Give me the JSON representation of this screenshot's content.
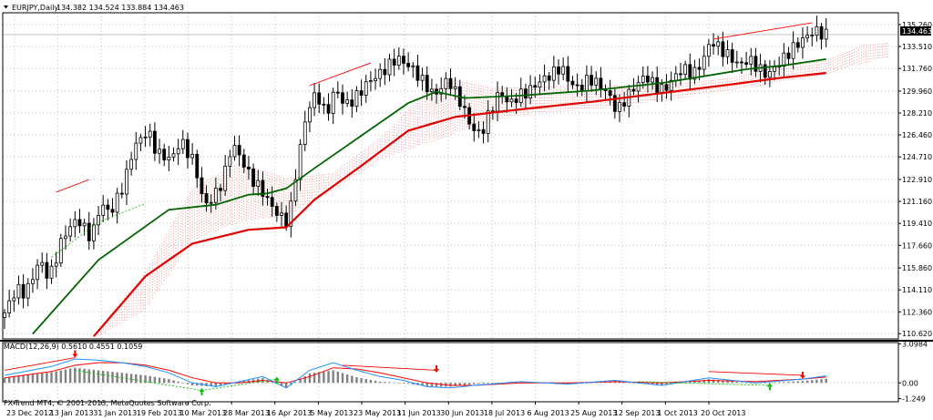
{
  "header": {
    "symbol": "EURJPY,Daily",
    "ohlc": "134.382 134.524 133.884 134.463",
    "menu_icon": "triangle-down-icon"
  },
  "macd_header": {
    "label": "MACD(12,26,9) 0.5610 0.4551 0.1059"
  },
  "copyright": "FX-Trend MT4, © 2001-2013, MetaQuotes Software Corp.",
  "price_axis": {
    "ticks": [
      "135.260",
      "133.510",
      "131.760",
      "129.960",
      "128.210",
      "126.460",
      "124.710",
      "122.910",
      "121.160",
      "119.410",
      "117.660",
      "115.860",
      "114.110",
      "112.360",
      "110.620"
    ],
    "current_price": "134.463"
  },
  "macd_axis": {
    "ticks": [
      "3.0984",
      "0.00",
      "-1.249"
    ]
  },
  "date_axis": {
    "ticks": [
      "23 Dec 2012",
      "13 Jan 2013",
      "31 Jan 2013",
      "19 Feb 2013",
      "10 Mar 2013",
      "28 Mar 2013",
      "16 Apr 2013",
      "5 May 2013",
      "23 May 2013",
      "11 Jun 2013",
      "30 Jun 2013",
      "18 Jul 2013",
      "6 Aug 2013",
      "25 Aug 2013",
      "12 Sep 2013",
      "1 Oct 2013",
      "20 Oct 2013"
    ]
  },
  "colors": {
    "candle": "#000000",
    "ma_fast": "#006400",
    "ma_slow": "#e00000",
    "cloud": "#f08080",
    "cloud_alt": "#c080c0",
    "macd_line": "#1e90ff",
    "signal_line": "#ff0000",
    "histogram": "#808080",
    "divergence_bear": "#ff0000",
    "divergence_bull": "#00c000",
    "grid": "#c0c0c0"
  },
  "chart_data": {
    "type": "candlestick",
    "title": "EURJPY,Daily",
    "ylim": [
      110.2,
      136.2
    ],
    "macd_ylim": [
      -1.5,
      3.2
    ],
    "anchors": [
      [
        0,
        111.9
      ],
      [
        3,
        114.2
      ],
      [
        5,
        113.8
      ],
      [
        8,
        116.5
      ],
      [
        10,
        115.0
      ],
      [
        13,
        118.4
      ],
      [
        16,
        119.8
      ],
      [
        19,
        118.2
      ],
      [
        21,
        121.0
      ],
      [
        23,
        120.2
      ],
      [
        26,
        122.6
      ],
      [
        28,
        125.5
      ],
      [
        31,
        126.8
      ],
      [
        33,
        125.0
      ],
      [
        36,
        124.5
      ],
      [
        38,
        126.0
      ],
      [
        41,
        124.2
      ],
      [
        43,
        120.8
      ],
      [
        45,
        121.5
      ],
      [
        47,
        122.8
      ],
      [
        49,
        125.8
      ],
      [
        51,
        124.5
      ],
      [
        53,
        123.0
      ],
      [
        55,
        122.2
      ],
      [
        57,
        121.0
      ],
      [
        59,
        120.0
      ],
      [
        61,
        119.5
      ],
      [
        63,
        124.5
      ],
      [
        65,
        128.5
      ],
      [
        67,
        129.8
      ],
      [
        69,
        128.0
      ],
      [
        71,
        130.2
      ],
      [
        73,
        128.8
      ],
      [
        75,
        129.3
      ],
      [
        78,
        130.7
      ],
      [
        81,
        131.5
      ],
      [
        84,
        132.6
      ],
      [
        87,
        131.9
      ],
      [
        89,
        131.0
      ],
      [
        92,
        129.6
      ],
      [
        95,
        130.9
      ],
      [
        98,
        128.8
      ],
      [
        100,
        127.0
      ],
      [
        102,
        126.5
      ],
      [
        104,
        128.4
      ],
      [
        106,
        129.9
      ],
      [
        108,
        128.9
      ],
      [
        110,
        129.6
      ],
      [
        112,
        129.9
      ],
      [
        114,
        130.6
      ],
      [
        117,
        131.3
      ],
      [
        119,
        131.9
      ],
      [
        121,
        130.6
      ],
      [
        123,
        130.1
      ],
      [
        125,
        131.0
      ],
      [
        127,
        130.5
      ],
      [
        129,
        129.8
      ],
      [
        131,
        128.3
      ],
      [
        133,
        129.5
      ],
      [
        135,
        130.4
      ],
      [
        137,
        131.2
      ],
      [
        139,
        130.4
      ],
      [
        141,
        130.0
      ],
      [
        143,
        131.0
      ],
      [
        145,
        131.8
      ],
      [
        147,
        131.2
      ],
      [
        149,
        132.2
      ],
      [
        151,
        134.0
      ],
      [
        153,
        133.3
      ],
      [
        155,
        132.7
      ],
      [
        157,
        132.0
      ],
      [
        159,
        132.5
      ],
      [
        161,
        131.8
      ],
      [
        163,
        131.2
      ],
      [
        165,
        132.0
      ],
      [
        167,
        132.8
      ],
      [
        169,
        133.6
      ],
      [
        171,
        134.2
      ],
      [
        173,
        134.8
      ],
      [
        175,
        134.46
      ]
    ],
    "ma_fast": [
      [
        6,
        110.6
      ],
      [
        20,
        116.5
      ],
      [
        35,
        120.5
      ],
      [
        45,
        120.9
      ],
      [
        52,
        121.7
      ],
      [
        56,
        121.8
      ],
      [
        60,
        122.2
      ],
      [
        66,
        123.8
      ],
      [
        76,
        126.4
      ],
      [
        86,
        129.0
      ],
      [
        92,
        129.9
      ],
      [
        98,
        129.4
      ],
      [
        110,
        129.6
      ],
      [
        125,
        130.0
      ],
      [
        140,
        130.6
      ],
      [
        150,
        131.2
      ],
      [
        158,
        131.7
      ],
      [
        166,
        132.0
      ],
      [
        175,
        132.5
      ]
    ],
    "ma_slow": [
      [
        19,
        110.4
      ],
      [
        30,
        115.2
      ],
      [
        40,
        117.8
      ],
      [
        52,
        118.9
      ],
      [
        60,
        119.1
      ],
      [
        66,
        121.3
      ],
      [
        76,
        124.0
      ],
      [
        86,
        126.8
      ],
      [
        96,
        127.9
      ],
      [
        110,
        128.5
      ],
      [
        125,
        129.1
      ],
      [
        140,
        129.8
      ],
      [
        155,
        130.5
      ],
      [
        165,
        131.0
      ],
      [
        175,
        131.4
      ]
    ],
    "cloud_top": [
      [
        20,
        111.0
      ],
      [
        30,
        115.5
      ],
      [
        40,
        122.2
      ],
      [
        50,
        124.2
      ],
      [
        60,
        123.0
      ],
      [
        70,
        123.4
      ],
      [
        80,
        126.2
      ],
      [
        90,
        130.0
      ],
      [
        96,
        130.8
      ],
      [
        104,
        130.2
      ],
      [
        112,
        130.3
      ],
      [
        125,
        130.4
      ],
      [
        140,
        130.4
      ],
      [
        155,
        131.0
      ],
      [
        165,
        131.9
      ],
      [
        175,
        132.4
      ],
      [
        183,
        133.6
      ],
      [
        188,
        133.8
      ]
    ],
    "cloud_bottom": [
      [
        20,
        110.4
      ],
      [
        30,
        112.5
      ],
      [
        40,
        118.0
      ],
      [
        50,
        119.5
      ],
      [
        60,
        120.0
      ],
      [
        70,
        122.0
      ],
      [
        80,
        124.5
      ],
      [
        90,
        125.8
      ],
      [
        96,
        126.6
      ],
      [
        104,
        127.6
      ],
      [
        112,
        128.1
      ],
      [
        125,
        128.5
      ],
      [
        140,
        129.2
      ],
      [
        155,
        130.0
      ],
      [
        165,
        130.6
      ],
      [
        175,
        131.3
      ],
      [
        183,
        132.2
      ],
      [
        188,
        132.6
      ]
    ],
    "ma_fast_dashed_ext": [
      [
        10,
        116.7
      ],
      [
        20,
        119.5
      ],
      [
        30,
        121.0
      ]
    ],
    "divergence_price": [
      [
        [
          11,
          121.9
        ],
        [
          18,
          122.9
        ]
      ],
      [
        [
          65,
          130.4
        ],
        [
          78,
          132.2
        ]
      ],
      [
        [
          151,
          134.1
        ],
        [
          172,
          135.4
        ]
      ]
    ],
    "macd_line": [
      [
        0,
        0.6
      ],
      [
        10,
        1.3
      ],
      [
        15,
        1.9
      ],
      [
        20,
        1.8
      ],
      [
        25,
        1.6
      ],
      [
        30,
        1.3
      ],
      [
        35,
        0.8
      ],
      [
        40,
        0.0
      ],
      [
        45,
        -0.3
      ],
      [
        50,
        0.1
      ],
      [
        55,
        0.5
      ],
      [
        60,
        -0.4
      ],
      [
        65,
        1.0
      ],
      [
        70,
        1.6
      ],
      [
        75,
        1.0
      ],
      [
        80,
        0.5
      ],
      [
        85,
        0.2
      ],
      [
        90,
        -0.3
      ],
      [
        95,
        -0.4
      ],
      [
        100,
        -0.2
      ],
      [
        110,
        0.1
      ],
      [
        120,
        -0.1
      ],
      [
        130,
        0.2
      ],
      [
        140,
        -0.2
      ],
      [
        150,
        0.4
      ],
      [
        160,
        0.0
      ],
      [
        170,
        0.3
      ],
      [
        175,
        0.56
      ]
    ],
    "signal_line": [
      [
        0,
        0.4
      ],
      [
        10,
        0.9
      ],
      [
        15,
        1.4
      ],
      [
        20,
        1.6
      ],
      [
        25,
        1.6
      ],
      [
        30,
        1.4
      ],
      [
        35,
        1.0
      ],
      [
        40,
        0.4
      ],
      [
        45,
        0.0
      ],
      [
        50,
        0.0
      ],
      [
        55,
        0.2
      ],
      [
        60,
        0.0
      ],
      [
        65,
        0.5
      ],
      [
        70,
        1.2
      ],
      [
        75,
        1.1
      ],
      [
        80,
        0.8
      ],
      [
        85,
        0.4
      ],
      [
        90,
        0.0
      ],
      [
        95,
        -0.2
      ],
      [
        100,
        -0.2
      ],
      [
        110,
        0.0
      ],
      [
        120,
        0.0
      ],
      [
        130,
        0.1
      ],
      [
        140,
        0.0
      ],
      [
        150,
        0.2
      ],
      [
        160,
        0.1
      ],
      [
        170,
        0.3
      ],
      [
        175,
        0.46
      ]
    ],
    "macd_divergence_bear": [
      [
        [
          0,
          1.0
        ],
        [
          15,
          2.0
        ]
      ],
      [
        [
          72,
          1.4
        ],
        [
          92,
          1.0
        ]
      ],
      [
        [
          150,
          0.9
        ],
        [
          170,
          0.6
        ]
      ]
    ],
    "macd_divergence_bull": [
      [
        [
          15,
          1.0
        ],
        [
          42,
          -0.6
        ]
      ],
      [
        [
          42,
          -0.6
        ],
        [
          58,
          0.3
        ]
      ],
      [
        [
          135,
          0.1
        ],
        [
          163,
          -0.2
        ]
      ]
    ],
    "bear_arrows": [
      [
        15,
        2.3
      ],
      [
        92,
        1.1
      ],
      [
        170,
        0.6
      ]
    ],
    "bull_arrows": [
      [
        42,
        -0.7
      ],
      [
        58,
        0.2
      ],
      [
        163,
        -0.3
      ]
    ]
  }
}
